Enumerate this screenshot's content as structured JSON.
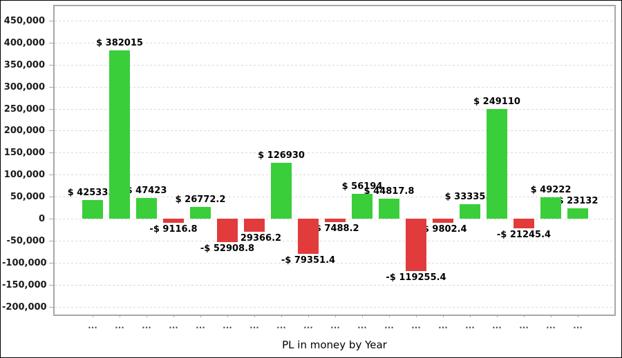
{
  "chart_data": {
    "type": "bar",
    "title": "",
    "xlabel": "PL in money by Year",
    "ylabel": "",
    "ylim": [
      -218000,
      483000
    ],
    "grid": "horizontal-dashed",
    "legend": "none",
    "colors": {
      "positive_bar": "#3ace3a",
      "negative_bar": "#e23b3b",
      "gridline": "#d9d9d9",
      "plot_border": "#a6a6a6",
      "label_text": "#000000",
      "tick_text": "#555555"
    },
    "y_ticks": [
      {
        "value": 450000,
        "label": "450,000"
      },
      {
        "value": 400000,
        "label": "400,000"
      },
      {
        "value": 350000,
        "label": "350,000"
      },
      {
        "value": 300000,
        "label": "300,000"
      },
      {
        "value": 250000,
        "label": "250,000"
      },
      {
        "value": 200000,
        "label": "200,000"
      },
      {
        "value": 150000,
        "label": "150,000"
      },
      {
        "value": 100000,
        "label": "100,000"
      },
      {
        "value": 50000,
        "label": "50,000"
      },
      {
        "value": 0,
        "label": "0"
      },
      {
        "value": -50000,
        "label": "-50,000"
      },
      {
        "value": -100000,
        "label": "-100,000"
      },
      {
        "value": -150000,
        "label": "-150,000"
      },
      {
        "value": -200000,
        "label": "-200,000"
      }
    ],
    "categories": [
      "...",
      "...",
      "...",
      "...",
      "...",
      "...",
      "...",
      "...",
      "...",
      "...",
      "...",
      "...",
      "...",
      "...",
      "...",
      "...",
      "...",
      "...",
      "..."
    ],
    "values": [
      42533.1,
      382015,
      47423,
      -9116.8,
      26772.2,
      -52908.8,
      -29366.2,
      126930,
      -79351.4,
      -7488.2,
      56194,
      44817.8,
      -119255.4,
      -9802.4,
      33335.1,
      249110,
      -21245.4,
      49222,
      23132
    ],
    "value_labels": [
      "$ 42533.1",
      "$ 382015",
      "$ 47423",
      "-$ 9116.8",
      "$ 26772.2",
      "-$ 52908.8",
      "-$ 29366.2",
      "$ 126930",
      "-$ 79351.4",
      "-$ 7488.2",
      "$ 56194",
      "$ 44817.8",
      "-$ 119255.4",
      "-$ 9802.4",
      "$ 33335.1",
      "$ 249110",
      "-$ 21245.4",
      "$ 49222",
      "$ 23132"
    ]
  }
}
